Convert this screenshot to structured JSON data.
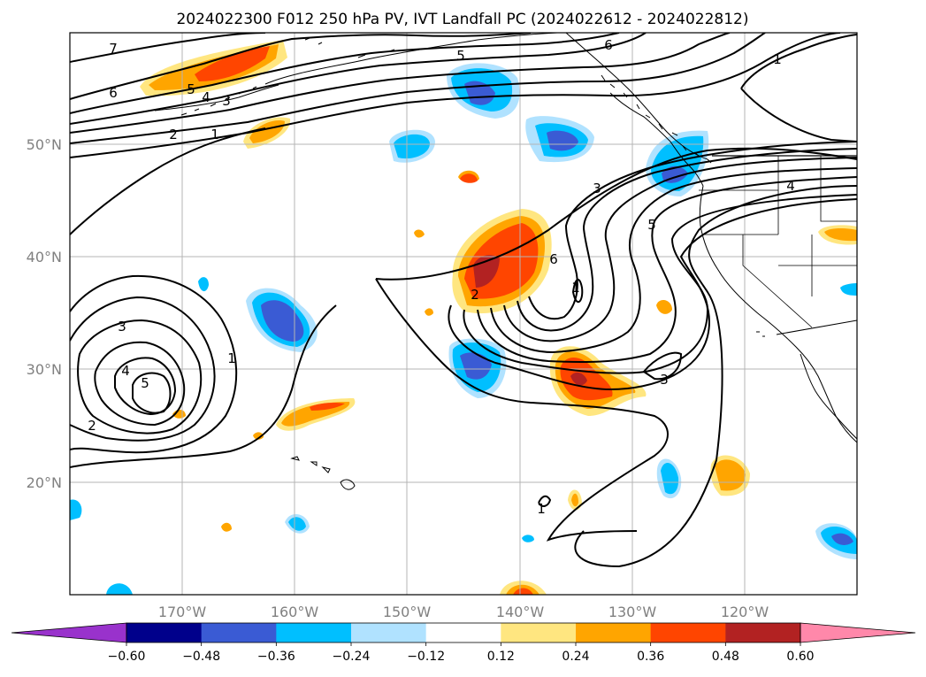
{
  "title": "2024022300 F012 250 hPa PV, IVT Landfall PC (2024022612 - 2024022812)",
  "map": {
    "projection": "PlateCarree",
    "lon_range": [
      180,
      250
    ],
    "lat_range": [
      10,
      60
    ],
    "gridlines": true,
    "lon_ticks": [
      "170°W",
      "160°W",
      "150°W",
      "140°W",
      "130°W",
      "120°W"
    ],
    "lat_ticks": [
      "20°N",
      "30°N",
      "40°N",
      "50°N"
    ]
  },
  "colorbar": {
    "orientation": "horizontal",
    "extend": "both",
    "levels": [
      -0.6,
      -0.48,
      -0.36,
      -0.24,
      -0.12,
      0.12,
      0.24,
      0.36,
      0.48,
      0.6
    ],
    "tick_labels": [
      "−0.60",
      "−0.48",
      "−0.36",
      "−0.24",
      "−0.12",
      "0.12",
      "0.24",
      "0.36",
      "0.48",
      "0.60"
    ],
    "colors": [
      "#9932cc",
      "#00008b",
      "#3a5bd4",
      "#00bfff",
      "#b0e2ff",
      "#ffffff",
      "#ffe680",
      "#ffa500",
      "#ff4500",
      "#b22222",
      "#ff88aa"
    ]
  },
  "contour_labels": [
    "7",
    "6",
    "5",
    "4",
    "3",
    "2",
    "1",
    "5",
    "6",
    "3",
    "5",
    "6",
    "4",
    "2",
    "1",
    "3",
    "4",
    "5",
    "2",
    "1",
    "3",
    "1",
    "1"
  ]
}
